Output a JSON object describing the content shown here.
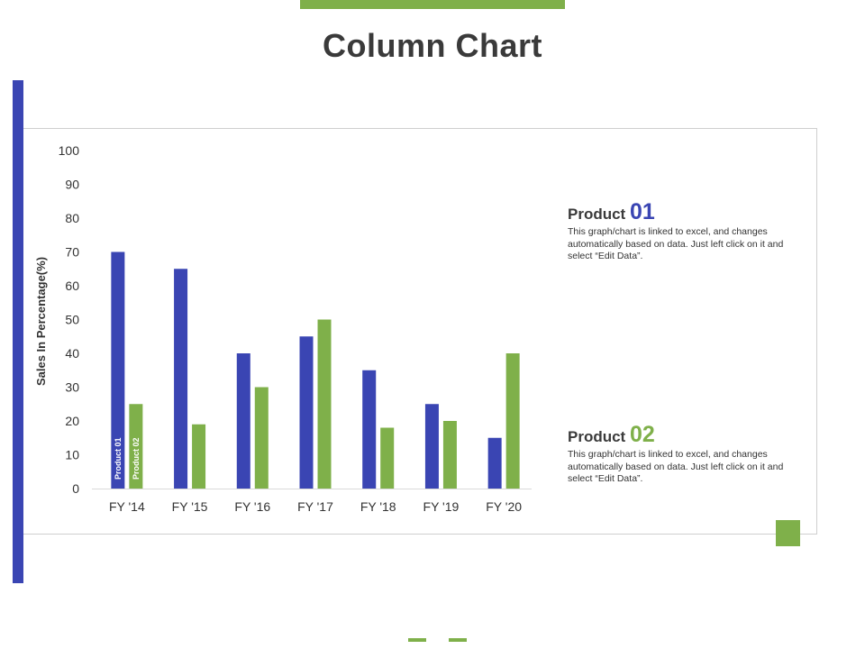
{
  "title": "Column Chart",
  "colors": {
    "product01": "#3a45b3",
    "product02": "#7fb04a",
    "accent": "#7fb04a"
  },
  "legend": [
    {
      "name": "Product",
      "number": "01",
      "description": "This graph/chart is linked to excel, and changes automatically based on data. Just left click on it and select “Edit Data”."
    },
    {
      "name": "Product",
      "number": "02",
      "description": "This graph/chart is linked to excel, and changes automatically based on data. Just left click on it and select “Edit Data”."
    }
  ],
  "chart_data": {
    "type": "bar",
    "categories": [
      "FY '14",
      "FY '15",
      "FY '16",
      "FY '17",
      "FY '18",
      "FY '19",
      "FY '20"
    ],
    "series": [
      {
        "name": "Product 01",
        "values": [
          70,
          65,
          40,
          45,
          35,
          25,
          15
        ]
      },
      {
        "name": "Product 02",
        "values": [
          25,
          19,
          30,
          50,
          18,
          20,
          40
        ]
      }
    ],
    "ylabel": "Sales In Percentage(%)",
    "yticks": [
      "0",
      "10",
      "20",
      "30",
      "40",
      "50",
      "60",
      "70",
      "80",
      "90",
      "100"
    ],
    "ylim": [
      0,
      100
    ],
    "grid": false
  }
}
